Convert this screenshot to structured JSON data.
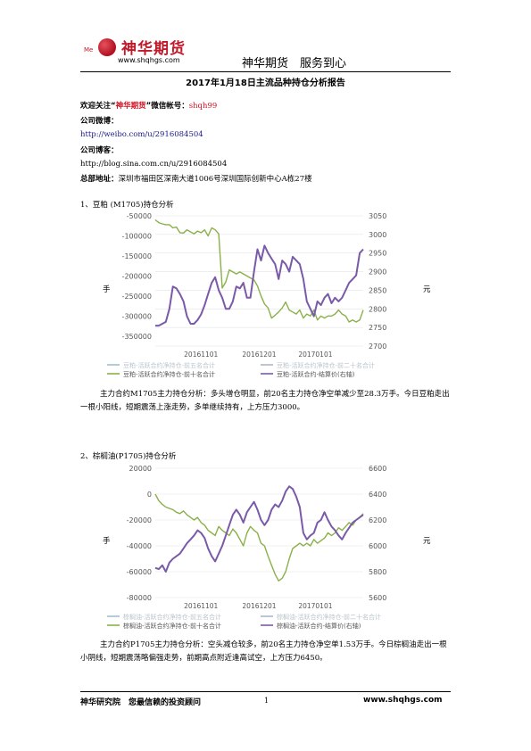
{
  "header": {
    "logo_mark": "Me",
    "logo_text": "神华期货",
    "logo_url": "www.shqhgs.com",
    "slogan": "神华期货　服务到心"
  },
  "title": "2017年1月18日主流品种持仓分析报告",
  "info": {
    "wechat_prefix": "欢迎关注“",
    "wechat_name": "神华期货",
    "wechat_mid": "”微信帐号：",
    "wechat_id": "shqh99",
    "weibo_label": "公司微博：",
    "weibo_url": "http://weibo.com/u/2916084504",
    "blog_label": "公司博客：",
    "blog_url": "http://blog.sina.com.cn/u/2916084504",
    "address_label": "总部地址：",
    "address": "深圳市福田区深南大道1006号深圳国际创新中心A栋27楼"
  },
  "section1": {
    "heading": "1、豆粕 (M1705)持仓分析",
    "left_unit": "手",
    "right_unit": "元",
    "legend": [
      "豆粕-活跃合约净持仓-前五名合计",
      "豆粕-活跃合约净持仓-前十名合计",
      "豆粕-活跃合约净持仓-前二十名合计",
      "豆粕-活跃合约-结算价(右轴)"
    ],
    "paragraph": "主力合约M1705主力持仓分析：多头增仓明显，前20名主力持仓净空单减少至28.3万手。今日豆粕走出一根小阳线，短期震荡上涨走势，多单继续持有，上方压力3000。"
  },
  "section2": {
    "heading": "2、棕榈油(P1705)持仓分析",
    "left_unit": "手",
    "right_unit": "元",
    "legend": [
      "棕榈油-活跃合约净持仓-前五名合计",
      "棕榈油-活跃合约净持仓-前十名合计",
      "棕榈油-活跃合约净持仓-前二十名合计",
      "棕榈油-活跃合约-结算价(右轴)"
    ],
    "paragraph": "主力合约P1705主力持仓分析：空头减仓较多，前20名主力持仓净空单1.53万手。今日棕榈油走出一根小阴线，短期震荡略偏强走势，前期高点附近逢高试空，上方压力6450。"
  },
  "footer": {
    "left": "神华研究院　您最信赖的投资顾问",
    "page": "1",
    "right": "www.shqhgs.com"
  },
  "chart_data": [
    {
      "type": "line",
      "title": "",
      "x_ticks": [
        "20161101",
        "20161201",
        "20170101"
      ],
      "y_left": {
        "ticks": [
          -50000,
          -100000,
          -150000,
          -200000,
          -250000,
          -300000,
          -350000
        ],
        "range": [
          -375000,
          -50000
        ]
      },
      "y_right": {
        "ticks": [
          3050,
          3000,
          2950,
          2900,
          2850,
          2800,
          2750,
          2700
        ],
        "range": [
          2700,
          3050
        ]
      },
      "series": [
        {
          "name": "豆粕-活跃合约净持仓-前二十名合计",
          "axis": "left",
          "color": "#8ab04a",
          "values": [
            -60000,
            -67000,
            -70000,
            -72000,
            -72000,
            -80000,
            -78000,
            -92000,
            -93000,
            -85000,
            -90000,
            -95000,
            -88000,
            -92000,
            -85000,
            -100000,
            -80000,
            -85000,
            -95000,
            -230000,
            -215000,
            -185000,
            -190000,
            -195000,
            -190000,
            -195000,
            -200000,
            -205000,
            -210000,
            -225000,
            -250000,
            -270000,
            -280000,
            -305000,
            -298000,
            -290000,
            -280000,
            -265000,
            -285000,
            -290000,
            -295000,
            -285000,
            -305000,
            -295000,
            -300000,
            -285000,
            -310000,
            -300000,
            -305000,
            -300000,
            -300000,
            -295000,
            -285000,
            -295000,
            -300000,
            -315000,
            -310000,
            -315000,
            -310000,
            -285000
          ]
        },
        {
          "name": "豆粕-活跃合约-结算价(右轴)",
          "axis": "right",
          "color": "#7a5aa8",
          "values": [
            2755,
            2755,
            2760,
            2765,
            2800,
            2860,
            2855,
            2840,
            2820,
            2780,
            2760,
            2760,
            2770,
            2785,
            2810,
            2840,
            2870,
            2885,
            2850,
            2830,
            2800,
            2800,
            2820,
            2860,
            2855,
            2870,
            2830,
            2830,
            2900,
            2960,
            2930,
            2970,
            2950,
            2935,
            2920,
            2880,
            2930,
            2920,
            2900,
            2940,
            2930,
            2920,
            2880,
            2820,
            2800,
            2780,
            2820,
            2810,
            2830,
            2840,
            2815,
            2830,
            2820,
            2830,
            2850,
            2870,
            2880,
            2890,
            2950,
            2960
          ]
        }
      ]
    },
    {
      "type": "line",
      "title": "",
      "x_ticks": [
        "20161101",
        "20161201",
        "20170101"
      ],
      "y_left": {
        "ticks": [
          20000,
          0,
          -20000,
          -40000,
          -60000,
          -80000
        ],
        "range": [
          -80000,
          20000
        ]
      },
      "y_right": {
        "ticks": [
          6600,
          6400,
          6200,
          6000,
          5800,
          5600
        ],
        "range": [
          5600,
          6600
        ]
      },
      "series": [
        {
          "name": "棕榈油-活跃合约净持仓-前二十名合计",
          "axis": "left",
          "color": "#8ab04a",
          "values": [
            0,
            -5000,
            -8000,
            -10000,
            -11000,
            -12000,
            -14000,
            -15000,
            -13000,
            -16000,
            -18000,
            -20000,
            -18000,
            -22000,
            -24000,
            -28000,
            -30000,
            -32000,
            -25000,
            -28000,
            -30000,
            -32000,
            -27000,
            -30000,
            -35000,
            -40000,
            -30000,
            -25000,
            -28000,
            -30000,
            -38000,
            -40000,
            -48000,
            -55000,
            -62000,
            -67000,
            -65000,
            -60000,
            -50000,
            -42000,
            -40000,
            -38000,
            -40000,
            -38000,
            -40000,
            -35000,
            -38000,
            -36000,
            -34000,
            -30000,
            -32000,
            -30000,
            -26000,
            -28000,
            -25000,
            -22000,
            -24000,
            -20000,
            -18000,
            -15000
          ]
        },
        {
          "name": "棕榈油-活跃合约-结算价(右轴)",
          "axis": "right",
          "color": "#7a5aa8",
          "values": [
            5830,
            5820,
            5850,
            5800,
            5870,
            5900,
            5920,
            5940,
            5980,
            6020,
            6050,
            6080,
            6120,
            6100,
            6060,
            5980,
            5920,
            5880,
            5940,
            6000,
            6080,
            6160,
            6240,
            6280,
            6240,
            6180,
            6260,
            6300,
            6340,
            6280,
            6200,
            6160,
            6200,
            6280,
            6320,
            6300,
            6350,
            6420,
            6460,
            6440,
            6380,
            6300,
            6100,
            6050,
            6080,
            6100,
            6180,
            6200,
            6260,
            6200,
            6150,
            6120,
            6080,
            6050,
            6100,
            6140,
            6180,
            6200,
            6220,
            6240
          ]
        }
      ]
    }
  ]
}
